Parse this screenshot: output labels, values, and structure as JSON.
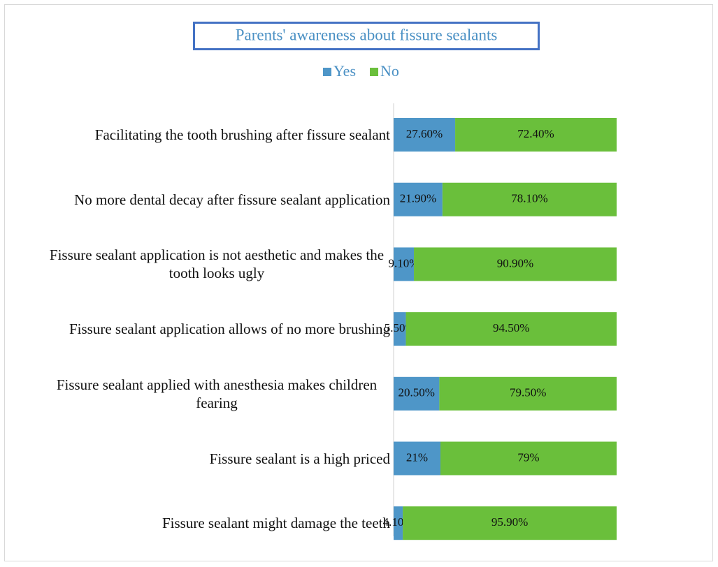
{
  "chart_data": {
    "type": "stacked_bar_horizontal",
    "title": "Parents' awareness about fissure sealants",
    "categories": [
      "Facilitating the tooth brushing after fissure sealant",
      "No more dental decay after fissure sealant application",
      "Fissure sealant application is not aesthetic and makes the tooth looks ugly",
      "Fissure sealant application allows of no more brushing",
      "Fissure sealant applied with anesthesia makes children fearing",
      "Fissure sealant is a high priced",
      "Fissure sealant might damage the teeth"
    ],
    "series": [
      {
        "name": "Yes",
        "color": "#4e96c8",
        "values": [
          27.6,
          21.9,
          9.1,
          5.5,
          20.5,
          21,
          4.1
        ],
        "value_labels": [
          "27.60%",
          "21.90%",
          "9.10%",
          "5.50%",
          "20.50%",
          "21%",
          "4.10%"
        ]
      },
      {
        "name": "No",
        "color": "#6abf3b",
        "values": [
          72.4,
          78.1,
          90.9,
          94.5,
          79.5,
          79,
          95.9
        ],
        "value_labels": [
          "72.40%",
          "78.10%",
          "90.90%",
          "94.50%",
          "79.50%",
          "79%",
          "95.90%"
        ]
      }
    ],
    "xlim": [
      0,
      100
    ]
  }
}
